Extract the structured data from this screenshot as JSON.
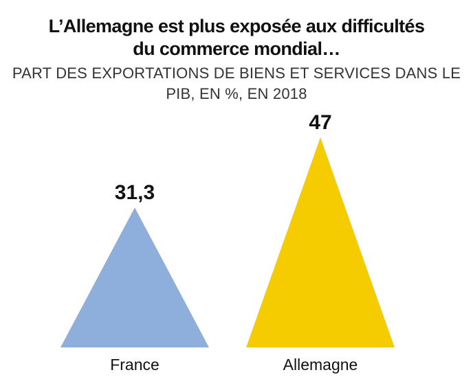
{
  "chart_data": {
    "type": "bar",
    "title": "L’Allemagne est plus exposée aux difficultés du commerce mondial…",
    "subtitle": "PART DES EXPORTATIONS DE BIENS ET SERVICES DANS LE PIB, EN %, EN 2018",
    "categories": [
      "France",
      "Allemagne"
    ],
    "values": [
      31.3,
      47
    ],
    "value_labels": [
      "31,3",
      "47"
    ],
    "colors": [
      "#8eafdb",
      "#f5cc00"
    ],
    "mark_shape": "triangle",
    "xlabel": "",
    "ylabel": "",
    "ylim": [
      0,
      47
    ],
    "grid": false
  }
}
